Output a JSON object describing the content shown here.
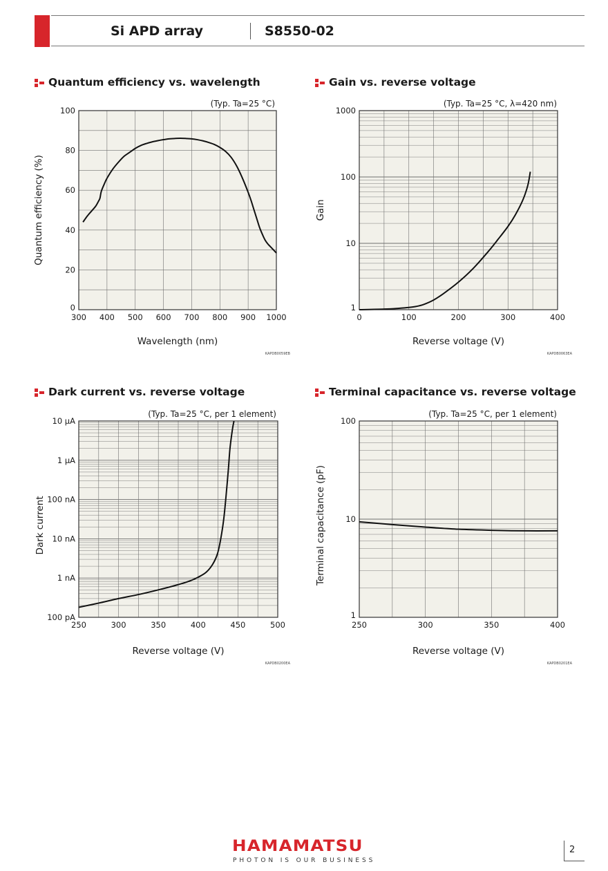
{
  "header": {
    "product_type": "Si APD array",
    "product_code": "S8550-02"
  },
  "footer": {
    "logo": "HAMAMATSU",
    "tagline": "PHOTON IS OUR BUSINESS",
    "page_number": "2"
  },
  "colors": {
    "accent": "#d7252b",
    "plot_bg": "#f2f1ea",
    "grid": "#6f6f6f",
    "curve": "#111111"
  },
  "icons": {
    "panel_title_icon": "red-bullet-icon"
  },
  "chart_data": [
    {
      "id": "qe",
      "type": "line",
      "title": "Quantum efficiency vs. wavelength",
      "condition": "(Typ. Ta=25 °C)",
      "xlabel": "Wavelength (nm)",
      "ylabel": "Quantum efficiency (%)",
      "xscale": "linear",
      "yscale": "linear",
      "xlim": [
        300,
        1000
      ],
      "ylim": [
        0,
        100
      ],
      "xticks": [
        "300",
        "400",
        "500",
        "600",
        "700",
        "800",
        "900",
        "1000"
      ],
      "yticks": [
        "0",
        "20",
        "40",
        "60",
        "80",
        "100"
      ],
      "code": "KAPDB0059EB",
      "series": [
        {
          "x": [
            315,
            330,
            345,
            360,
            370,
            375,
            380,
            390,
            400,
            420,
            440,
            460,
            480,
            500,
            520,
            540,
            560,
            580,
            600,
            620,
            640,
            660,
            680,
            700,
            720,
            740,
            760,
            780,
            800,
            820,
            840,
            860,
            880,
            900,
            910,
            920,
            930,
            940,
            950,
            960,
            970,
            980,
            990,
            1000
          ],
          "y": [
            44,
            47,
            49.5,
            52,
            54.5,
            56,
            59.5,
            63,
            66,
            70.5,
            74,
            77,
            79,
            81,
            82.5,
            83.5,
            84.3,
            84.9,
            85.4,
            85.8,
            86,
            86.1,
            86,
            85.8,
            85.4,
            84.8,
            84,
            83,
            81.5,
            79.5,
            76.5,
            72,
            66,
            59,
            55,
            50.5,
            46,
            41.5,
            38,
            35,
            33,
            31.5,
            30,
            28.5
          ]
        }
      ]
    },
    {
      "id": "gain",
      "type": "line",
      "title": "Gain vs. reverse voltage",
      "condition": "(Typ. Ta=25 °C, λ=420 nm)",
      "xlabel": "Reverse voltage (V)",
      "ylabel": "Gain",
      "xscale": "linear",
      "yscale": "log",
      "xlim": [
        0,
        400
      ],
      "ylim": [
        1,
        1000
      ],
      "xticks": [
        "0",
        "100",
        "200",
        "300",
        "400"
      ],
      "yticks": [
        "1",
        "10",
        "100",
        "1000"
      ],
      "code": "KAPDB0063EA",
      "series": [
        {
          "x": [
            0,
            50,
            80,
            100,
            115,
            130,
            150,
            170,
            200,
            230,
            260,
            280,
            300,
            315,
            330,
            340,
            345
          ],
          "y": [
            1,
            1.02,
            1.05,
            1.08,
            1.12,
            1.2,
            1.4,
            1.75,
            2.6,
            4.2,
            7.5,
            11.5,
            18,
            27,
            45,
            75,
            120
          ]
        }
      ]
    },
    {
      "id": "dark",
      "type": "line",
      "title": "Dark current vs. reverse voltage",
      "condition": "(Typ. Ta=25 °C, per 1 element)",
      "xlabel": "Reverse voltage (V)",
      "ylabel": "Dark current",
      "xscale": "linear",
      "yscale": "log",
      "xlim": [
        250,
        500
      ],
      "ylim": [
        1e-10,
        1e-05
      ],
      "xticks": [
        "250",
        "300",
        "350",
        "400",
        "450",
        "500"
      ],
      "yticks": [
        "100 pA",
        "1 nA",
        "10 nA",
        "100 nA",
        "1 μA",
        "10 μA"
      ],
      "code": "KAPDB0200EA",
      "series": [
        {
          "x": [
            250,
            275,
            300,
            325,
            350,
            375,
            390,
            400,
            410,
            418,
            424,
            428,
            432,
            435,
            438,
            440,
            443,
            445
          ],
          "y": [
            1.8e-10,
            2.3e-10,
            3e-10,
            3.8e-10,
            5e-10,
            6.8e-10,
            8.5e-10,
            1.05e-09,
            1.4e-09,
            2.2e-09,
            4e-09,
            9e-09,
            3e-08,
            1.2e-07,
            6e-07,
            2e-06,
            6e-06,
            1e-05
          ]
        }
      ]
    },
    {
      "id": "cap",
      "type": "line",
      "title": "Terminal capacitance vs. reverse voltage",
      "condition": "(Typ. Ta=25 °C, per 1 element)",
      "xlabel": "Reverse voltage (V)",
      "ylabel": "Terminal capacitance (pF)",
      "xscale": "linear",
      "yscale": "log",
      "xlim": [
        250,
        400
      ],
      "ylim": [
        1,
        100
      ],
      "xticks": [
        "250",
        "300",
        "350",
        "400"
      ],
      "yticks": [
        "1",
        "10",
        "100"
      ],
      "code": "KAPDB0201EA",
      "series": [
        {
          "x": [
            250,
            275,
            300,
            325,
            350,
            375,
            400
          ],
          "y": [
            9.4,
            8.8,
            8.3,
            7.9,
            7.7,
            7.6,
            7.6
          ]
        }
      ]
    }
  ]
}
